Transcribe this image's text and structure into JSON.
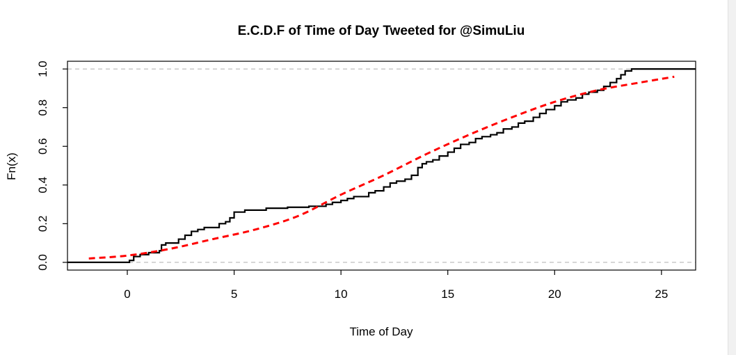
{
  "chart_data": {
    "type": "line",
    "title": "E.C.D.F of Time of Day Tweeted for @SimuLiu",
    "xlabel": "Time of Day",
    "ylabel": "Fn(x)",
    "xlim": [
      -2.8,
      26.6
    ],
    "ylim": [
      -0.04,
      1.04
    ],
    "xticks": [
      "0",
      "5",
      "10",
      "15",
      "20",
      "25"
    ],
    "yticks": [
      "0.0",
      "0.2",
      "0.4",
      "0.6",
      "0.8",
      "1.0"
    ],
    "reference_lines": [
      0,
      1
    ],
    "colors": {
      "ecdf": "#000000",
      "fitted": "#ff0000",
      "reference": "#bebebe"
    },
    "series": [
      {
        "style": "step",
        "x": [
          -2.8,
          0.1,
          0.3,
          0.6,
          1.0,
          1.5,
          1.6,
          1.8,
          2.2,
          2.4,
          2.7,
          3.0,
          3.3,
          3.6,
          4.0,
          4.3,
          4.6,
          4.8,
          5.0,
          5.5,
          6.0,
          6.5,
          7.0,
          7.5,
          8.0,
          8.5,
          9.0,
          9.3,
          9.6,
          10.0,
          10.3,
          10.6,
          11.0,
          11.3,
          11.6,
          12.0,
          12.3,
          12.6,
          13.0,
          13.3,
          13.6,
          13.8,
          14.0,
          14.3,
          14.6,
          15.0,
          15.3,
          15.6,
          16.0,
          16.3,
          16.6,
          17.0,
          17.3,
          17.6,
          18.0,
          18.3,
          18.6,
          19.0,
          19.3,
          19.6,
          20.0,
          20.3,
          20.6,
          21.0,
          21.3,
          21.6,
          22.0,
          22.3,
          22.6,
          22.9,
          23.1,
          23.3,
          23.6,
          24.0,
          25.0,
          26.6
        ],
        "y": [
          0,
          0.01,
          0.03,
          0.04,
          0.05,
          0.06,
          0.09,
          0.1,
          0.1,
          0.12,
          0.14,
          0.16,
          0.17,
          0.18,
          0.18,
          0.2,
          0.21,
          0.23,
          0.26,
          0.27,
          0.27,
          0.28,
          0.28,
          0.285,
          0.285,
          0.29,
          0.29,
          0.3,
          0.31,
          0.32,
          0.33,
          0.34,
          0.34,
          0.36,
          0.37,
          0.39,
          0.41,
          0.42,
          0.43,
          0.45,
          0.49,
          0.51,
          0.52,
          0.53,
          0.55,
          0.57,
          0.59,
          0.61,
          0.62,
          0.64,
          0.65,
          0.66,
          0.67,
          0.69,
          0.7,
          0.72,
          0.73,
          0.75,
          0.77,
          0.79,
          0.81,
          0.83,
          0.84,
          0.85,
          0.87,
          0.88,
          0.89,
          0.91,
          0.93,
          0.95,
          0.97,
          0.99,
          1.0,
          1.0,
          1.0,
          1.0
        ]
      },
      {
        "style": "dashed",
        "x": [
          -1.8,
          0,
          2,
          4,
          6,
          8,
          10,
          12,
          14,
          16,
          18,
          20,
          22,
          24,
          25.6
        ],
        "y": [
          0.02,
          0.035,
          0.07,
          0.12,
          0.17,
          0.24,
          0.35,
          0.45,
          0.56,
          0.66,
          0.75,
          0.83,
          0.89,
          0.93,
          0.96
        ]
      }
    ]
  }
}
